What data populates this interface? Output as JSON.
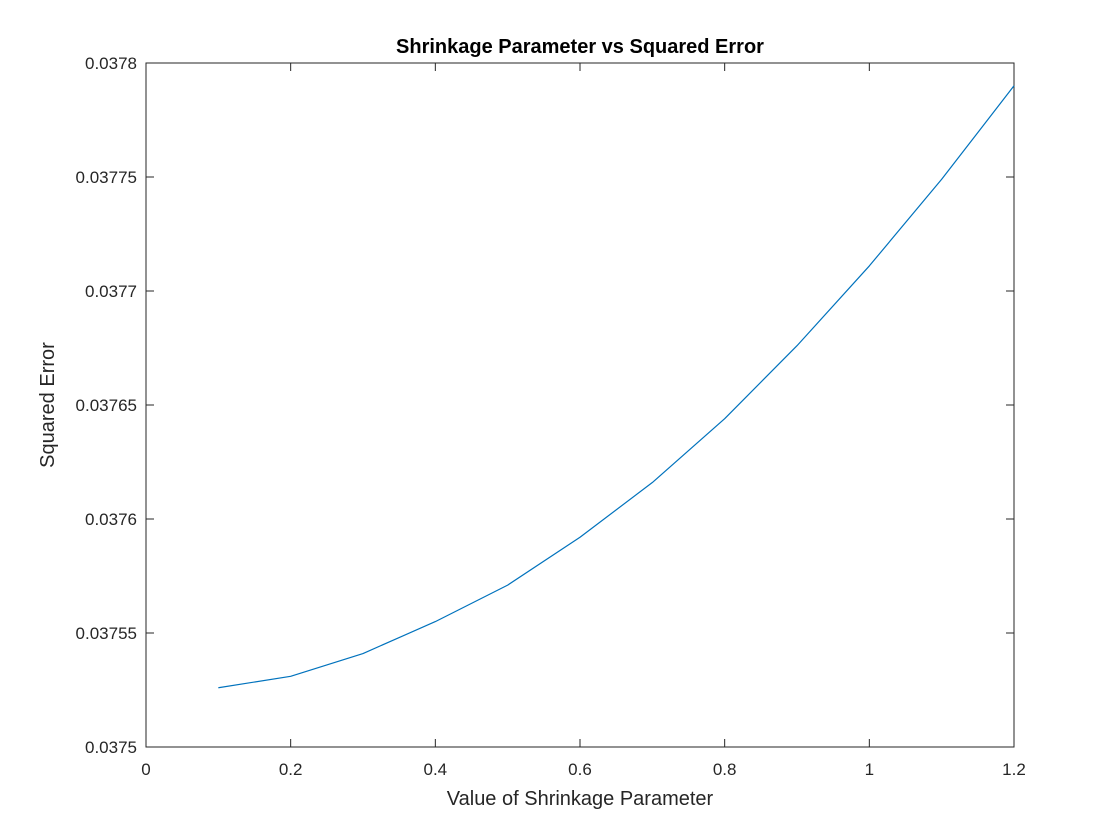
{
  "chart_data": {
    "type": "line",
    "title": "Shrinkage Parameter vs Squared Error",
    "xlabel": "Value of Shrinkage Parameter",
    "ylabel": "Squared Error",
    "xlim": [
      0,
      1.2
    ],
    "ylim": [
      0.0375,
      0.0378
    ],
    "xticks": [
      0,
      0.2,
      0.4,
      0.6,
      0.8,
      1,
      1.2
    ],
    "xtick_labels": [
      "0",
      "0.2",
      "0.4",
      "0.6",
      "0.8",
      "1",
      "1.2"
    ],
    "yticks": [
      0.0375,
      0.03755,
      0.0376,
      0.03765,
      0.0377,
      0.03775,
      0.0378
    ],
    "ytick_labels": [
      "0.0375",
      "0.03755",
      "0.0376",
      "0.03765",
      "0.0377",
      "0.03775",
      "0.0378"
    ],
    "grid": false,
    "legend": "none",
    "series": [
      {
        "color": "#0072BD",
        "x": [
          0.1,
          0.2,
          0.3,
          0.4,
          0.5,
          0.6,
          0.7,
          0.8,
          0.9,
          1.0,
          1.1,
          1.2
        ],
        "y": [
          0.037526,
          0.037531,
          0.037541,
          0.037555,
          0.037571,
          0.037592,
          0.037616,
          0.037644,
          0.037676,
          0.037711,
          0.037749,
          0.03779
        ]
      }
    ]
  }
}
